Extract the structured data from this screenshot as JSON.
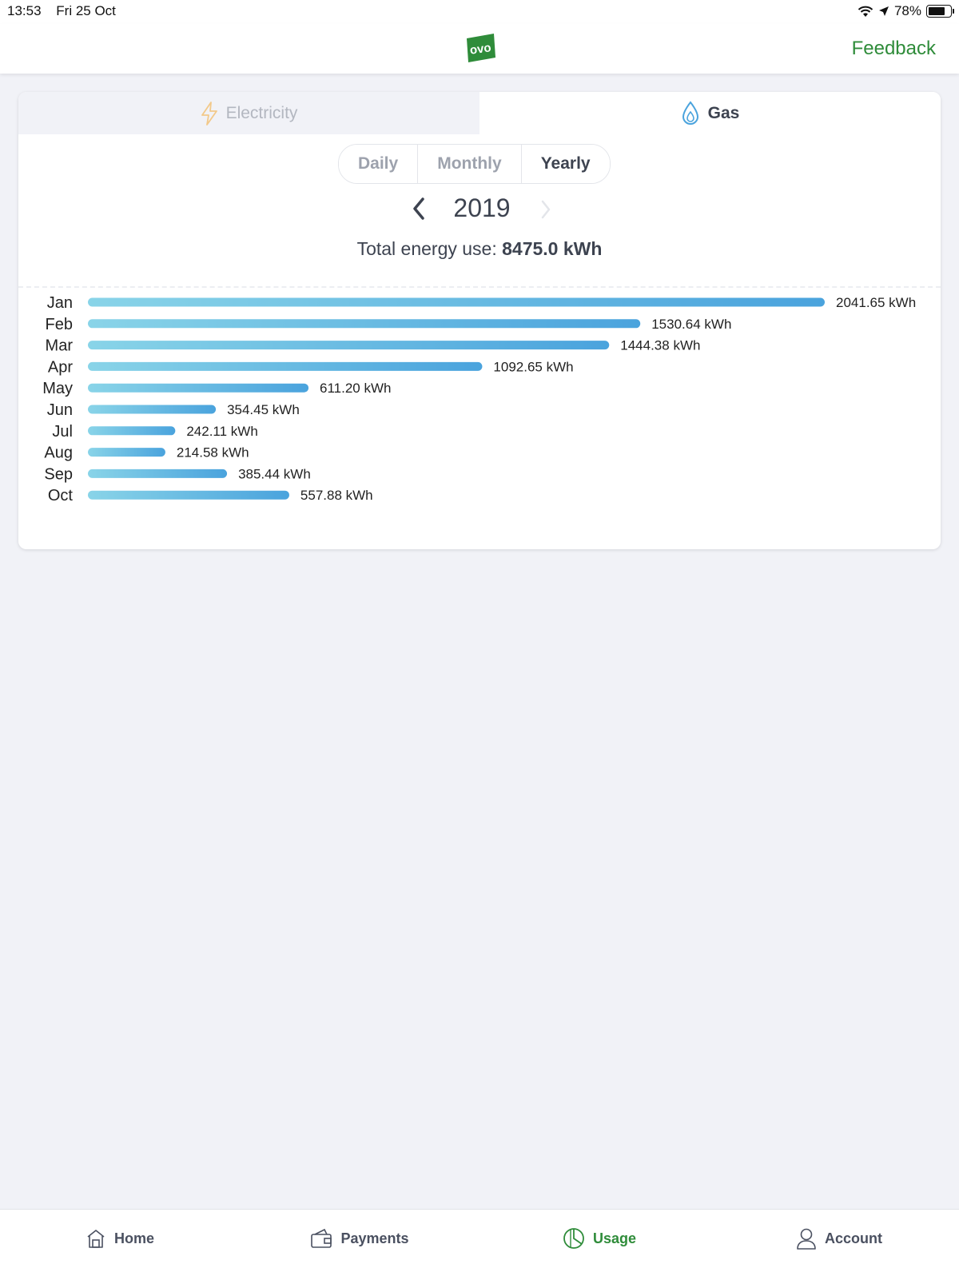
{
  "status": {
    "time": "13:53",
    "date": "Fri 25 Oct",
    "battery": "78%",
    "battery_level": 0.78
  },
  "header": {
    "logo_text": "ovo",
    "feedback": "Feedback"
  },
  "fuel_tabs": [
    {
      "label": "Electricity",
      "icon": "lightning-icon",
      "active": false
    },
    {
      "label": "Gas",
      "icon": "flame-drop-icon",
      "active": true
    }
  ],
  "period_tabs": [
    {
      "label": "Daily",
      "active": false
    },
    {
      "label": "Monthly",
      "active": false
    },
    {
      "label": "Yearly",
      "active": true
    }
  ],
  "year": "2019",
  "total": {
    "label": "Total energy use:",
    "value": "8475.0 kWh"
  },
  "colors": {
    "brand_green": "#2f8c3a",
    "bar_start": "#89d4e8",
    "bar_end": "#4aa3dd"
  },
  "chart_data": {
    "type": "bar",
    "orientation": "horizontal",
    "unit": "kWh",
    "categories": [
      "Jan",
      "Feb",
      "Mar",
      "Apr",
      "May",
      "Jun",
      "Jul",
      "Aug",
      "Sep",
      "Oct"
    ],
    "values": [
      2041.65,
      1530.64,
      1444.38,
      1092.65,
      611.2,
      354.45,
      242.11,
      214.58,
      385.44,
      557.88
    ],
    "value_labels": [
      "2041.65 kWh",
      "1530.64 kWh",
      "1444.38 kWh",
      "1092.65 kWh",
      "611.20 kWh",
      "354.45 kWh",
      "242.11 kWh",
      "214.58 kWh",
      "385.44 kWh",
      "557.88 kWh"
    ],
    "xlim": [
      0,
      2041.65
    ]
  },
  "bottom_nav": [
    {
      "label": "Home",
      "icon": "home-icon",
      "active": false
    },
    {
      "label": "Payments",
      "icon": "wallet-icon",
      "active": false
    },
    {
      "label": "Usage",
      "icon": "usage-pie-icon",
      "active": true
    },
    {
      "label": "Account",
      "icon": "person-icon",
      "active": false
    }
  ]
}
